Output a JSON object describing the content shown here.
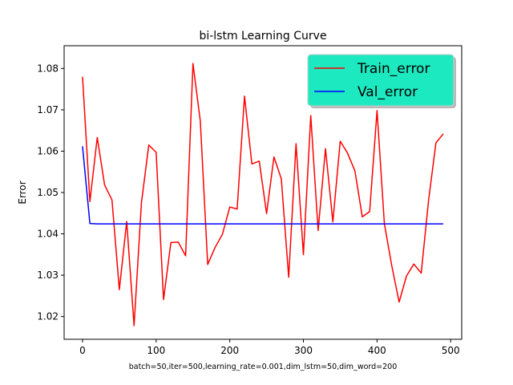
{
  "chart_data": {
    "type": "line",
    "title": "bi-lstm Learning Curve",
    "xlabel": "batch=50,iter=500,learning_rate=0.001,dim_lstm=50,dim_word=200",
    "ylabel": "Error",
    "xlim": [
      -25,
      515
    ],
    "ylim": [
      1.0145,
      1.0855
    ],
    "xticks": [
      0,
      100,
      200,
      300,
      400,
      500
    ],
    "yticks": [
      1.02,
      1.03,
      1.04,
      1.05,
      1.06,
      1.07,
      1.08
    ],
    "xtick_labels": [
      "0",
      "100",
      "200",
      "300",
      "400",
      "500"
    ],
    "ytick_labels": [
      "1.02",
      "1.03",
      "1.04",
      "1.05",
      "1.06",
      "1.07",
      "1.08"
    ],
    "grid": false,
    "legend_position": "top-right",
    "legend_facecolor": "#1de9c0",
    "series": [
      {
        "name": "Train_error",
        "color": "#ff0000",
        "x": [
          0,
          10,
          20,
          30,
          40,
          50,
          60,
          70,
          80,
          90,
          100,
          110,
          120,
          130,
          140,
          150,
          160,
          170,
          180,
          190,
          200,
          210,
          220,
          230,
          240,
          250,
          260,
          270,
          280,
          290,
          300,
          310,
          320,
          330,
          340,
          350,
          360,
          370,
          380,
          390,
          400,
          410,
          420,
          430,
          440,
          450,
          460,
          470,
          480,
          490
        ],
        "values": [
          1.078,
          1.0478,
          1.0633,
          1.0518,
          1.0482,
          1.0265,
          1.043,
          1.0178,
          1.0475,
          1.0615,
          1.0597,
          1.0241,
          1.0379,
          1.038,
          1.0347,
          1.0812,
          1.0672,
          1.0326,
          1.0367,
          1.0399,
          1.0465,
          1.046,
          1.0733,
          1.0569,
          1.0576,
          1.0449,
          1.0586,
          1.0533,
          1.0295,
          1.0618,
          1.035,
          1.0686,
          1.0408,
          1.0606,
          1.0429,
          1.0624,
          1.0595,
          1.0552,
          1.0441,
          1.0454,
          1.0698,
          1.0424,
          1.0323,
          1.0235,
          1.0298,
          1.0327,
          1.0305,
          1.0481,
          1.062,
          1.0642
        ]
      },
      {
        "name": "Val_error",
        "color": "#0000ff",
        "x": [
          0,
          10,
          20,
          30,
          40,
          50,
          60,
          70,
          80,
          90,
          100,
          110,
          120,
          130,
          140,
          150,
          160,
          170,
          180,
          190,
          200,
          210,
          220,
          230,
          240,
          250,
          260,
          270,
          280,
          290,
          300,
          310,
          320,
          330,
          340,
          350,
          360,
          370,
          380,
          390,
          400,
          410,
          420,
          430,
          440,
          450,
          460,
          470,
          480,
          490
        ],
        "values": [
          1.0612,
          1.0425,
          1.0424,
          1.0424,
          1.0424,
          1.0424,
          1.0424,
          1.0424,
          1.0424,
          1.0424,
          1.0424,
          1.0424,
          1.0424,
          1.0424,
          1.0424,
          1.0424,
          1.0424,
          1.0424,
          1.0424,
          1.0424,
          1.0424,
          1.0424,
          1.0424,
          1.0424,
          1.0424,
          1.0424,
          1.0424,
          1.0424,
          1.0424,
          1.0424,
          1.0424,
          1.0424,
          1.0424,
          1.0424,
          1.0424,
          1.0424,
          1.0424,
          1.0424,
          1.0424,
          1.0424,
          1.0424,
          1.0424,
          1.0424,
          1.0424,
          1.0424,
          1.0424,
          1.0424,
          1.0424,
          1.0424,
          1.0424
        ]
      }
    ]
  }
}
